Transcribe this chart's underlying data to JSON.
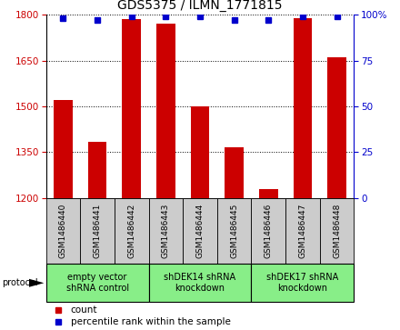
{
  "title": "GDS5375 / ILMN_1771815",
  "samples": [
    "GSM1486440",
    "GSM1486441",
    "GSM1486442",
    "GSM1486443",
    "GSM1486444",
    "GSM1486445",
    "GSM1486446",
    "GSM1486447",
    "GSM1486448"
  ],
  "counts": [
    1520,
    1385,
    1785,
    1770,
    1500,
    1365,
    1230,
    1790,
    1660
  ],
  "percentile_ranks": [
    98,
    97,
    99,
    99,
    99,
    97,
    97,
    99,
    99
  ],
  "ylim_left": [
    1200,
    1800
  ],
  "ylim_right": [
    0,
    100
  ],
  "yticks_left": [
    1200,
    1350,
    1500,
    1650,
    1800
  ],
  "yticks_right": [
    0,
    25,
    50,
    75,
    100
  ],
  "bar_color": "#cc0000",
  "dot_color": "#0000cc",
  "groups": [
    {
      "label": "empty vector\nshRNA control",
      "start": 0,
      "end": 3
    },
    {
      "label": "shDEK14 shRNA\nknockdown",
      "start": 3,
      "end": 6
    },
    {
      "label": "shDEK17 shRNA\nknockdown",
      "start": 6,
      "end": 9
    }
  ],
  "legend_count_label": "count",
  "legend_percentile_label": "percentile rank within the sample",
  "protocol_label": "protocol",
  "sample_box_color": "#cccccc",
  "group_box_color": "#88ee88",
  "title_fontsize": 10,
  "tick_fontsize": 7.5,
  "label_fontsize": 6.5,
  "group_fontsize": 7,
  "legend_fontsize": 7.5
}
